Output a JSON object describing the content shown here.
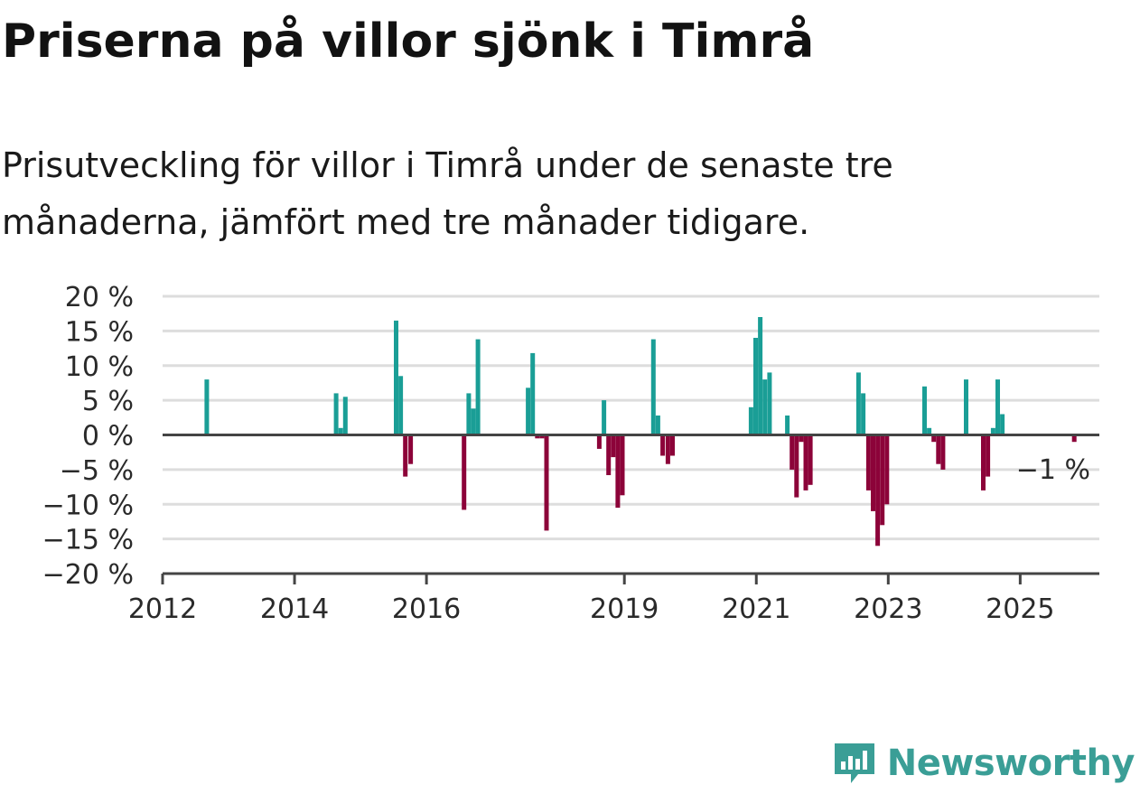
{
  "header": {
    "title": "Priserna på villor sjönk i Timrå",
    "subtitle": "Prisutveckling för villor i Timrå under de senaste tre månaderna, jämfört med tre månader tidigare."
  },
  "brand": {
    "name": "Newsworthy",
    "icon": "newsworthy-logo-icon"
  },
  "colors": {
    "positive": "#1a9e96",
    "negative": "#8c0339",
    "grid": "#dddddd",
    "axis": "#444444"
  },
  "chart_data": {
    "type": "bar",
    "title": "Priserna på villor sjönk i Timrå",
    "xlabel": "",
    "ylabel": "",
    "unit": "%",
    "ylim": [
      -20,
      20
    ],
    "xlim": [
      2012.0,
      2026.2
    ],
    "yticks": [
      20,
      15,
      10,
      5,
      0,
      -5,
      -10,
      -15,
      -20
    ],
    "ytick_labels": [
      "20 %",
      "15 %",
      "10 %",
      "5 %",
      "0 %",
      "−5 %",
      "−10 %",
      "−15 %",
      "−20 %"
    ],
    "xticks": [
      2012,
      2014,
      2016,
      2019,
      2021,
      2023,
      2025
    ],
    "xtick_labels": [
      "2012",
      "2014",
      "2016",
      "2019",
      "2021",
      "2023",
      "2025"
    ],
    "grid": true,
    "last_value_label": "−1 %",
    "bars": [
      {
        "x": 2012.67,
        "y": 8
      },
      {
        "x": 2014.63,
        "y": 6
      },
      {
        "x": 2014.7,
        "y": 1
      },
      {
        "x": 2014.77,
        "y": 5.5
      },
      {
        "x": 2015.54,
        "y": 16.5
      },
      {
        "x": 2015.61,
        "y": 8.5
      },
      {
        "x": 2015.68,
        "y": -6
      },
      {
        "x": 2015.76,
        "y": -4.2
      },
      {
        "x": 2016.57,
        "y": -10.8
      },
      {
        "x": 2016.64,
        "y": 6
      },
      {
        "x": 2016.71,
        "y": 3.8
      },
      {
        "x": 2016.78,
        "y": 13.8
      },
      {
        "x": 2017.54,
        "y": 6.8
      },
      {
        "x": 2017.61,
        "y": 11.8
      },
      {
        "x": 2017.68,
        "y": -0.5
      },
      {
        "x": 2017.75,
        "y": -0.5
      },
      {
        "x": 2017.82,
        "y": -13.8
      },
      {
        "x": 2018.62,
        "y": -2
      },
      {
        "x": 2018.69,
        "y": 5
      },
      {
        "x": 2018.76,
        "y": -5.8
      },
      {
        "x": 2018.83,
        "y": -3.2
      },
      {
        "x": 2018.9,
        "y": -10.5
      },
      {
        "x": 2018.97,
        "y": -8.7
      },
      {
        "x": 2019.44,
        "y": 13.8
      },
      {
        "x": 2019.51,
        "y": 2.8
      },
      {
        "x": 2019.58,
        "y": -3
      },
      {
        "x": 2019.66,
        "y": -4.2
      },
      {
        "x": 2019.73,
        "y": -3
      },
      {
        "x": 2020.92,
        "y": 4
      },
      {
        "x": 2020.99,
        "y": 14
      },
      {
        "x": 2021.06,
        "y": 17
      },
      {
        "x": 2021.13,
        "y": 8
      },
      {
        "x": 2021.2,
        "y": 9
      },
      {
        "x": 2021.47,
        "y": 2.8
      },
      {
        "x": 2021.54,
        "y": -5
      },
      {
        "x": 2021.61,
        "y": -9
      },
      {
        "x": 2021.68,
        "y": -1
      },
      {
        "x": 2021.75,
        "y": -8
      },
      {
        "x": 2021.82,
        "y": -7.2
      },
      {
        "x": 2022.55,
        "y": 9
      },
      {
        "x": 2022.62,
        "y": 6
      },
      {
        "x": 2022.7,
        "y": -8
      },
      {
        "x": 2022.77,
        "y": -11
      },
      {
        "x": 2022.84,
        "y": -16
      },
      {
        "x": 2022.91,
        "y": -13
      },
      {
        "x": 2022.98,
        "y": -10
      },
      {
        "x": 2023.55,
        "y": 7
      },
      {
        "x": 2023.62,
        "y": 1
      },
      {
        "x": 2023.69,
        "y": -1
      },
      {
        "x": 2023.76,
        "y": -4.2
      },
      {
        "x": 2023.83,
        "y": -5
      },
      {
        "x": 2024.18,
        "y": 8
      },
      {
        "x": 2024.44,
        "y": -8
      },
      {
        "x": 2024.51,
        "y": -6
      },
      {
        "x": 2024.59,
        "y": 1
      },
      {
        "x": 2024.66,
        "y": 8
      },
      {
        "x": 2024.73,
        "y": 3
      },
      {
        "x": 2025.82,
        "y": -1
      }
    ]
  }
}
